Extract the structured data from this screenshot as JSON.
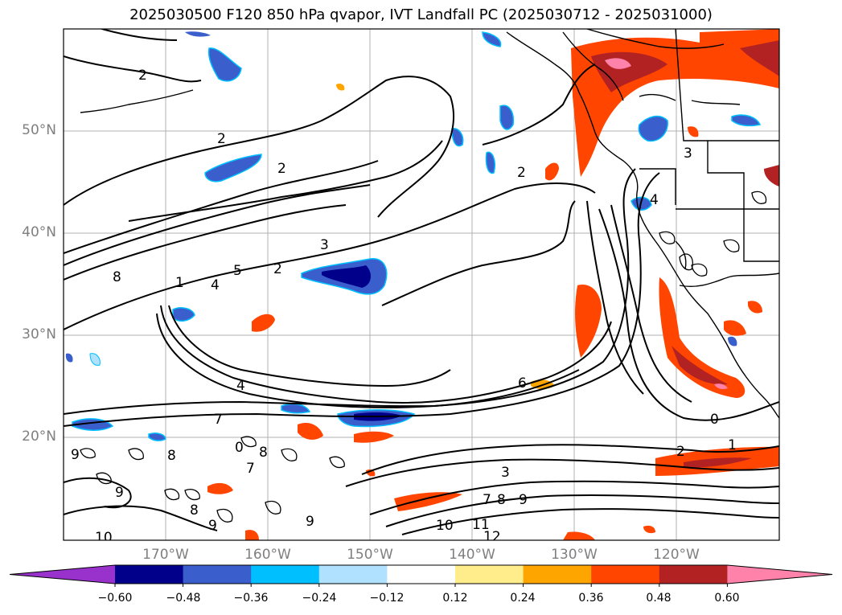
{
  "title": "2025030500 F120 850 hPa qvapor, IVT Landfall PC (2025030712 - 2025031000)",
  "map": {
    "lat_labels": [
      "50°N",
      "40°N",
      "30°N",
      "20°N"
    ],
    "lon_labels": [
      "170°W",
      "160°W",
      "150°W",
      "140°W",
      "130°W",
      "120°W"
    ]
  },
  "contour_labels": [
    "2",
    "2",
    "2",
    "8",
    "1",
    "4",
    "5",
    "2",
    "3",
    "4",
    "2",
    "6",
    "7",
    "0",
    "8",
    "7",
    "9",
    "8",
    "9",
    "8",
    "9",
    "9",
    "10",
    "3",
    "7",
    "8",
    "9",
    "10",
    "11",
    "12",
    "2",
    "1",
    "0",
    "4",
    "3"
  ],
  "colorbar": {
    "colors": [
      "#9932cc",
      "#00008b",
      "#3a5fcd",
      "#00bfff",
      "#b0e2ff",
      "#ffffff",
      "#ffec8b",
      "#ffa500",
      "#ff4500",
      "#b22222",
      "#ff82ab"
    ],
    "tick_labels": [
      "−0.60",
      "−0.48",
      "−0.36",
      "−0.24",
      "−0.12",
      "0.12",
      "0.24",
      "0.36",
      "0.48",
      "0.60"
    ]
  }
}
